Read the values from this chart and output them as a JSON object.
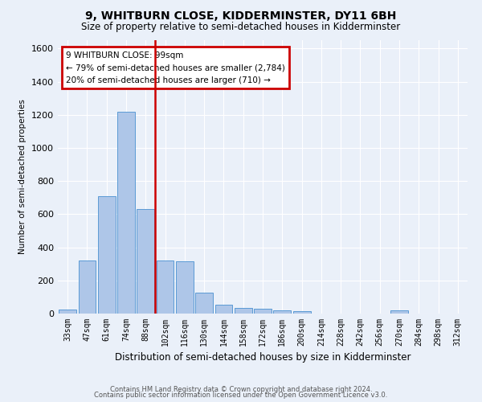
{
  "title": "9, WHITBURN CLOSE, KIDDERMINSTER, DY11 6BH",
  "subtitle": "Size of property relative to semi-detached houses in Kidderminster",
  "xlabel": "Distribution of semi-detached houses by size in Kidderminster",
  "ylabel": "Number of semi-detached properties",
  "categories": [
    "33sqm",
    "47sqm",
    "61sqm",
    "74sqm",
    "88sqm",
    "102sqm",
    "116sqm",
    "130sqm",
    "144sqm",
    "158sqm",
    "172sqm",
    "186sqm",
    "200sqm",
    "214sqm",
    "228sqm",
    "242sqm",
    "256sqm",
    "270sqm",
    "284sqm",
    "298sqm",
    "312sqm"
  ],
  "values": [
    25,
    320,
    710,
    1220,
    630,
    320,
    315,
    125,
    55,
    35,
    30,
    20,
    15,
    0,
    0,
    0,
    0,
    20,
    0,
    0,
    0
  ],
  "bar_color": "#aec6e8",
  "bar_edge_color": "#5b9bd5",
  "annotation_text1": "9 WHITBURN CLOSE: 99sqm",
  "annotation_text2": "← 79% of semi-detached houses are smaller (2,784)",
  "annotation_text3": "20% of semi-detached houses are larger (710) →",
  "annotation_box_color": "#ffffff",
  "annotation_box_edge": "#cc0000",
  "vline_color": "#cc0000",
  "ylim": [
    0,
    1650
  ],
  "yticks": [
    0,
    200,
    400,
    600,
    800,
    1000,
    1200,
    1400,
    1600
  ],
  "background_color": "#eaf0f9",
  "grid_color": "#ffffff",
  "footer1": "Contains HM Land Registry data © Crown copyright and database right 2024.",
  "footer2": "Contains public sector information licensed under the Open Government Licence v3.0."
}
